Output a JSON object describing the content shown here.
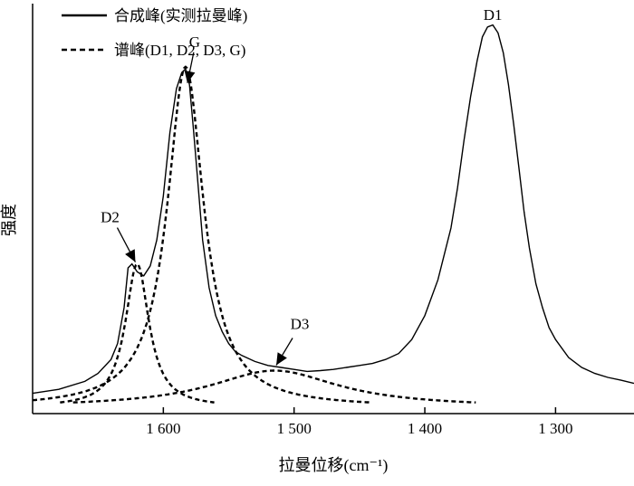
{
  "chart_data": {
    "type": "line",
    "title": "",
    "xlabel": "拉曼位移(cm⁻¹)",
    "ylabel": "强度",
    "x_reversed": true,
    "xlim": [
      1700,
      1240
    ],
    "ylim": [
      0,
      1
    ],
    "y_ticks_shown": false,
    "xticks": [
      1600,
      1500,
      1400,
      1300
    ],
    "xtick_labels": [
      "1 600",
      "1 500",
      "1 400",
      "1 300"
    ],
    "legend": {
      "placement": "top-left",
      "entries": [
        {
          "label": "合成峰(实测拉曼峰)",
          "style": "solid"
        },
        {
          "label": "谱峰(D1, D2, D3, G)",
          "style": "dashed"
        }
      ]
    },
    "peaks": [
      {
        "name": "D1",
        "center": 1348,
        "height": 0.955,
        "width": 28,
        "style": "solid"
      },
      {
        "name": "G",
        "center": 1583,
        "height": 0.855,
        "width": 17,
        "style": "dashed"
      },
      {
        "name": "D2",
        "center": 1620,
        "height": 0.36,
        "width": 11,
        "style": "dashed"
      },
      {
        "name": "D3",
        "center": 1515,
        "height": 0.092,
        "width": 60,
        "style": "dashed"
      }
    ],
    "annotations": [
      {
        "text": "D1",
        "peak": "D1",
        "arrow": false
      },
      {
        "text": "G",
        "peak": "G",
        "arrow": true
      },
      {
        "text": "D2",
        "peak": "D2",
        "arrow": true
      },
      {
        "text": "D3",
        "peak": "D3",
        "arrow": true
      }
    ],
    "series": [
      {
        "name": "合成峰(实测拉曼峰)",
        "style": "solid",
        "x": [
          1700,
          1680,
          1660,
          1650,
          1640,
          1635,
          1630,
          1627,
          1624,
          1620,
          1615,
          1610,
          1605,
          1600,
          1595,
          1590,
          1586,
          1583,
          1580,
          1577,
          1574,
          1570,
          1565,
          1560,
          1555,
          1550,
          1545,
          1540,
          1530,
          1520,
          1510,
          1500,
          1490,
          1480,
          1470,
          1460,
          1450,
          1440,
          1430,
          1420,
          1410,
          1400,
          1390,
          1380,
          1375,
          1370,
          1365,
          1360,
          1356,
          1352,
          1348,
          1344,
          1340,
          1336,
          1332,
          1328,
          1324,
          1320,
          1315,
          1310,
          1305,
          1300,
          1290,
          1280,
          1270,
          1260,
          1250,
          1240
        ],
        "y": [
          0.035,
          0.045,
          0.065,
          0.085,
          0.12,
          0.16,
          0.25,
          0.35,
          0.36,
          0.34,
          0.33,
          0.355,
          0.42,
          0.53,
          0.69,
          0.8,
          0.84,
          0.85,
          0.81,
          0.7,
          0.58,
          0.42,
          0.3,
          0.23,
          0.19,
          0.16,
          0.14,
          0.13,
          0.115,
          0.105,
          0.1,
          0.095,
          0.09,
          0.092,
          0.095,
          0.1,
          0.105,
          0.11,
          0.12,
          0.135,
          0.17,
          0.23,
          0.32,
          0.45,
          0.55,
          0.67,
          0.78,
          0.87,
          0.93,
          0.955,
          0.96,
          0.94,
          0.89,
          0.81,
          0.71,
          0.6,
          0.49,
          0.4,
          0.31,
          0.25,
          0.2,
          0.17,
          0.125,
          0.1,
          0.085,
          0.075,
          0.068,
          0.06
        ]
      }
    ]
  }
}
